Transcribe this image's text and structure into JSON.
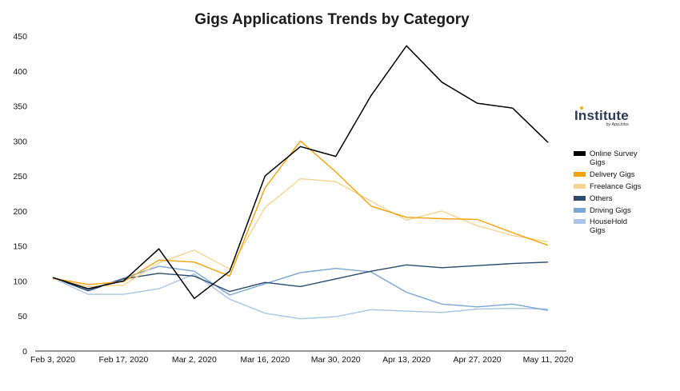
{
  "chart_data": {
    "type": "line",
    "title": "Gigs Applications Trends by Category",
    "xlabel": "",
    "ylabel": "",
    "ylim": [
      0,
      450
    ],
    "yticks": [
      0,
      50,
      100,
      150,
      200,
      250,
      300,
      350,
      400,
      450
    ],
    "x_tick_labels": [
      "Feb 3, 2020",
      "Feb 17, 2020",
      "Mar 2, 2020",
      "Mar 16, 2020",
      "Mar 30, 2020",
      "Apr 13, 2020",
      "Apr 27, 2020",
      "May 11, 2020"
    ],
    "x": [
      "2020-02-03",
      "2020-02-10",
      "2020-02-17",
      "2020-02-24",
      "2020-03-02",
      "2020-03-09",
      "2020-03-16",
      "2020-03-23",
      "2020-03-30",
      "2020-04-06",
      "2020-04-13",
      "2020-04-20",
      "2020-04-27",
      "2020-05-04",
      "2020-05-11"
    ],
    "grid": false,
    "legend_position": "right",
    "series": [
      {
        "name": "Online Survey Gigs",
        "color": "#000000",
        "values": [
          105,
          89,
          100,
          146,
          75,
          114,
          250,
          292,
          278,
          365,
          436,
          384,
          354,
          347,
          298
        ]
      },
      {
        "name": "Delivery Gigs",
        "color": "#f2a20c",
        "values": [
          104,
          95,
          99,
          130,
          127,
          107,
          233,
          300,
          256,
          207,
          191,
          189,
          188,
          169,
          151
        ]
      },
      {
        "name": "Freelance Gigs",
        "color": "#f5d491",
        "values": [
          103,
          92,
          94,
          126,
          144,
          117,
          205,
          246,
          242,
          214,
          187,
          200,
          179,
          165,
          156
        ]
      },
      {
        "name": "Others",
        "color": "#2a4a6d",
        "values": [
          105,
          86,
          103,
          111,
          107,
          85,
          98,
          92,
          103,
          114,
          123,
          119,
          122,
          125,
          127
        ]
      },
      {
        "name": "Driving Gigs",
        "color": "#7aa5d6",
        "values": [
          105,
          87,
          104,
          121,
          114,
          80,
          96,
          112,
          118,
          113,
          84,
          67,
          63,
          67,
          58
        ]
      },
      {
        "name": "HouseHold Gigs",
        "color": "#a9c4e6",
        "values": [
          104,
          81,
          81,
          89,
          110,
          74,
          54,
          46,
          49,
          59,
          57,
          55,
          60,
          61,
          60
        ]
      }
    ]
  },
  "brand": {
    "name": "Institute",
    "sub": "by AppJobs"
  }
}
